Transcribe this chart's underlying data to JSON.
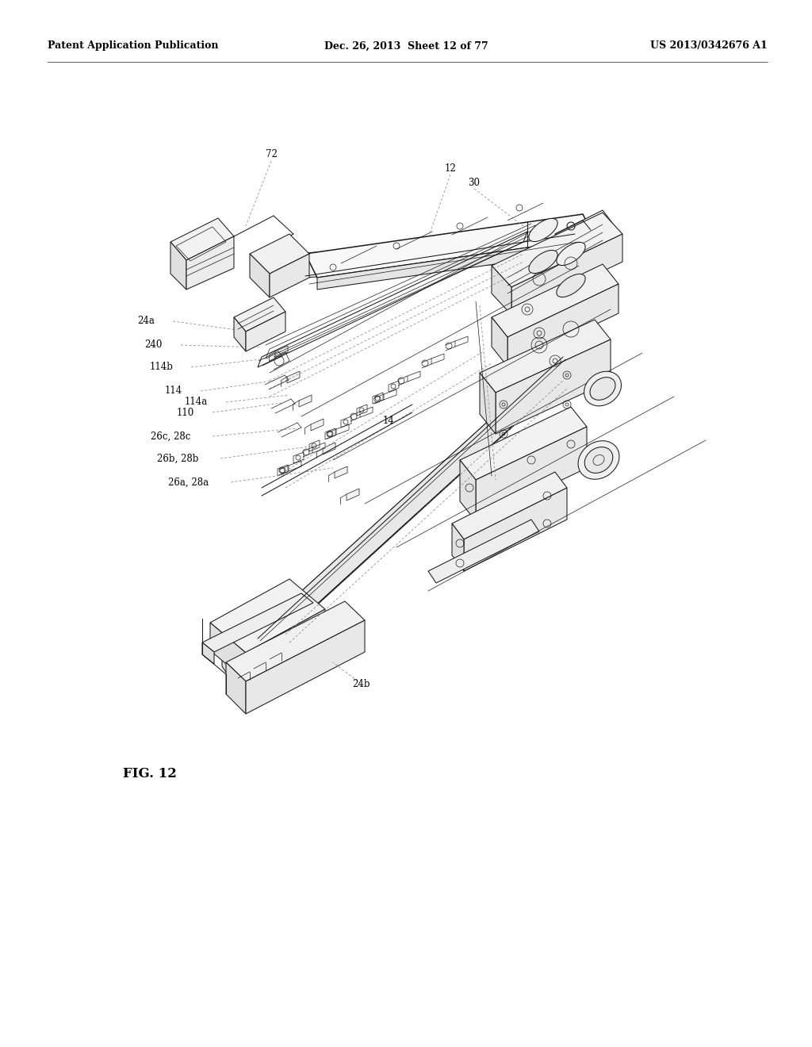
{
  "bg_color": "#ffffff",
  "header_left": "Patent Application Publication",
  "header_center": "Dec. 26, 2013  Sheet 12 of 77",
  "header_right": "US 2013/0342676 A1",
  "fig_label": "FIG. 12",
  "line_color": "#1a1a1a",
  "text_color": "#000000",
  "lw_heavy": 1.1,
  "lw_med": 0.75,
  "lw_light": 0.5
}
